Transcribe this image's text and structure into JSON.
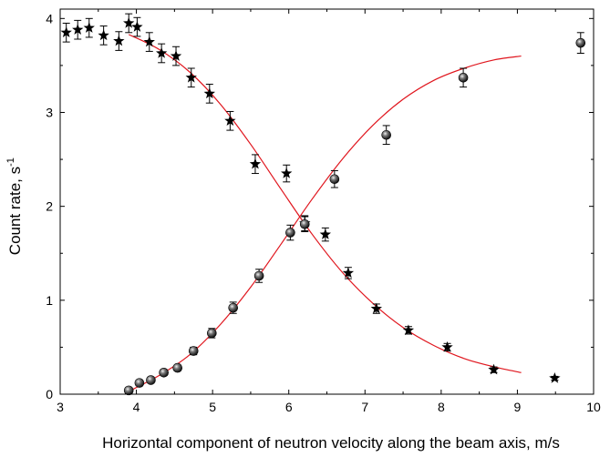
{
  "chart_data": {
    "type": "scatter",
    "title": "",
    "xlabel": "Horizontal component of neutron velocity along the beam axis, m/s",
    "ylabel_main": "Count rate, s",
    "ylabel_sup": "-1",
    "xlim": [
      3,
      10
    ],
    "ylim": [
      0,
      4.1
    ],
    "xticks": [
      "3",
      "4",
      "5",
      "6",
      "7",
      "8",
      "9",
      "10"
    ],
    "yticks": [
      "0",
      "1",
      "2",
      "3",
      "4"
    ],
    "grid": false,
    "legend": "none",
    "series": [
      {
        "marker": "star",
        "color": "#000000",
        "points": [
          {
            "x": 3.08,
            "y": 3.85,
            "err": 0.1
          },
          {
            "x": 3.23,
            "y": 3.88,
            "err": 0.1
          },
          {
            "x": 3.38,
            "y": 3.9,
            "err": 0.1
          },
          {
            "x": 3.57,
            "y": 3.82,
            "err": 0.1
          },
          {
            "x": 3.77,
            "y": 3.76,
            "err": 0.1
          },
          {
            "x": 3.9,
            "y": 3.95,
            "err": 0.1
          },
          {
            "x": 4.01,
            "y": 3.91,
            "err": 0.1
          },
          {
            "x": 4.17,
            "y": 3.75,
            "err": 0.1
          },
          {
            "x": 4.33,
            "y": 3.63,
            "err": 0.1
          },
          {
            "x": 4.52,
            "y": 3.6,
            "err": 0.1
          },
          {
            "x": 4.72,
            "y": 3.37,
            "err": 0.1
          },
          {
            "x": 4.96,
            "y": 3.2,
            "err": 0.1
          },
          {
            "x": 5.23,
            "y": 2.91,
            "err": 0.1
          },
          {
            "x": 5.56,
            "y": 2.45,
            "err": 0.1
          },
          {
            "x": 5.97,
            "y": 2.35,
            "err": 0.09
          },
          {
            "x": 6.21,
            "y": 1.82,
            "err": 0.08
          },
          {
            "x": 6.48,
            "y": 1.7,
            "err": 0.07
          },
          {
            "x": 6.78,
            "y": 1.29,
            "err": 0.06
          },
          {
            "x": 7.15,
            "y": 0.91,
            "err": 0.05
          },
          {
            "x": 7.57,
            "y": 0.68,
            "err": 0.04
          },
          {
            "x": 8.08,
            "y": 0.5,
            "err": 0.04
          },
          {
            "x": 8.69,
            "y": 0.26,
            "err": 0.03
          },
          {
            "x": 9.49,
            "y": 0.17,
            "err": 0.02
          }
        ]
      },
      {
        "marker": "sphere",
        "color": "#000000",
        "points": [
          {
            "x": 3.9,
            "y": 0.04,
            "err": 0.03
          },
          {
            "x": 4.04,
            "y": 0.12,
            "err": 0.03
          },
          {
            "x": 4.19,
            "y": 0.15,
            "err": 0.03
          },
          {
            "x": 4.36,
            "y": 0.23,
            "err": 0.03
          },
          {
            "x": 4.54,
            "y": 0.28,
            "err": 0.03
          },
          {
            "x": 4.75,
            "y": 0.46,
            "err": 0.04
          },
          {
            "x": 4.99,
            "y": 0.65,
            "err": 0.05
          },
          {
            "x": 5.27,
            "y": 0.92,
            "err": 0.06
          },
          {
            "x": 5.61,
            "y": 1.26,
            "err": 0.07
          },
          {
            "x": 6.02,
            "y": 1.72,
            "err": 0.08
          },
          {
            "x": 6.21,
            "y": 1.81,
            "err": 0.08
          },
          {
            "x": 6.6,
            "y": 2.29,
            "err": 0.09
          },
          {
            "x": 7.28,
            "y": 2.76,
            "err": 0.1
          },
          {
            "x": 8.29,
            "y": 3.37,
            "err": 0.1
          },
          {
            "x": 9.83,
            "y": 3.74,
            "err": 0.11
          }
        ]
      }
    ],
    "fit_curves": [
      {
        "color": "#e0161e",
        "x": [
          3.9,
          4.3,
          4.7,
          5.1,
          5.5,
          5.9,
          6.3,
          6.7,
          7.1,
          7.5,
          7.9,
          8.3,
          8.7,
          9.05
        ],
        "y": [
          3.83,
          3.67,
          3.43,
          3.09,
          2.66,
          2.18,
          1.71,
          1.3,
          0.97,
          0.71,
          0.52,
          0.38,
          0.29,
          0.23
        ]
      },
      {
        "color": "#e0161e",
        "x": [
          3.85,
          4.3,
          4.7,
          5.1,
          5.5,
          5.9,
          6.3,
          6.7,
          7.1,
          7.5,
          7.9,
          8.3,
          8.7,
          9.05
        ],
        "y": [
          0.01,
          0.2,
          0.42,
          0.74,
          1.14,
          1.6,
          2.07,
          2.5,
          2.86,
          3.14,
          3.34,
          3.47,
          3.56,
          3.6
        ]
      }
    ]
  }
}
